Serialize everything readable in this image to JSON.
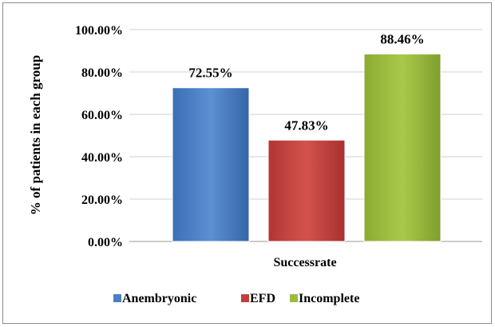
{
  "chart_data": {
    "type": "bar",
    "categories": [
      "Successrate"
    ],
    "series": [
      {
        "name": "Anembryonic",
        "values": [
          72.55
        ],
        "color": "#4a7fc1",
        "label": "72.55%"
      },
      {
        "name": "EFD",
        "values": [
          47.83
        ],
        "color": "#c0403d",
        "label": "47.83%"
      },
      {
        "name": "Incomplete",
        "values": [
          88.46
        ],
        "color": "#9bbb3c",
        "label": "88.46%"
      }
    ],
    "xlabel": "Successrate",
    "ylabel": "% of patients in each group",
    "ylim": [
      0,
      100
    ],
    "yticks": [
      "0.00%",
      "20.00%",
      "40.00%",
      "60.00%",
      "80.00%",
      "100.00%"
    ],
    "grid": true,
    "legend_position": "bottom"
  }
}
